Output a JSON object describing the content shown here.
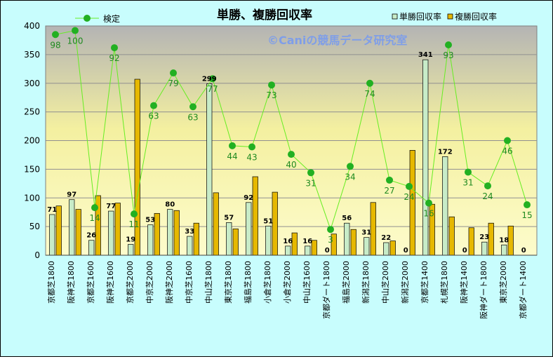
{
  "chart_data": {
    "type": "bar",
    "title": "単勝、複勝回収率",
    "watermark": "©Caniの競馬データ研究室",
    "ylim": [
      0,
      400
    ],
    "yticks": [
      0,
      50,
      100,
      150,
      200,
      250,
      300,
      350,
      400
    ],
    "categories": [
      "京都芝1800",
      "阪神芝1800",
      "京都芝1600",
      "阪神芝1600",
      "京都芝2000",
      "中京芝2000",
      "阪神芝2000",
      "中京芝1600",
      "中山芝1800",
      "東京芝1800",
      "福島芝1800",
      "小倉芝1800",
      "小倉芝2000",
      "中山芝1600",
      "京都ダート1800",
      "福島芝2000",
      "新潟芝1800",
      "中山芝2000",
      "新潟芝2000",
      "京都芝1400",
      "札幌芝1800",
      "阪神芝1400",
      "阪神ダート1800",
      "東京芝2000",
      "京都ダート1400"
    ],
    "series": [
      {
        "name": "単勝回収率",
        "type": "bar",
        "color": "#c8ecc8",
        "values": [
          71,
          97,
          26,
          77,
          19,
          53,
          80,
          33,
          299,
          57,
          92,
          51,
          16,
          16,
          0,
          56,
          31,
          22,
          0,
          341,
          172,
          0,
          23,
          18,
          0
        ]
      },
      {
        "name": "複勝回収率",
        "type": "bar",
        "color": "#e6b800",
        "values": [
          86,
          80,
          104,
          91,
          307,
          73,
          78,
          56,
          109,
          46,
          137,
          110,
          39,
          26,
          37,
          45,
          92,
          25,
          183,
          89,
          67,
          48,
          56,
          51,
          0
        ]
      },
      {
        "name": "検定",
        "type": "line",
        "color": "#22b022",
        "labels": [
          98,
          100,
          14,
          92,
          11,
          63,
          79,
          63,
          77,
          44,
          43,
          73,
          40,
          31,
          3,
          34,
          74,
          27,
          24,
          16,
          93,
          31,
          24,
          46,
          15
        ],
        "values": [
          385,
          392,
          83,
          362,
          72,
          261,
          318,
          259,
          308,
          191,
          189,
          297,
          176,
          144,
          45,
          155,
          300,
          131,
          120,
          91,
          367,
          145,
          121,
          200,
          88
        ]
      }
    ]
  }
}
